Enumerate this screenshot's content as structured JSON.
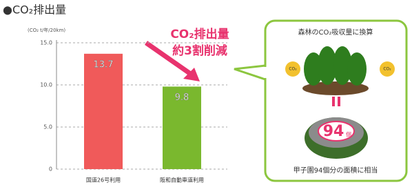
{
  "chart_data": {
    "type": "bar",
    "title": "●CO₂排出量",
    "unit_label": "(CO₂ t/年/20km)",
    "categories": [
      "国道26号利用",
      "阪和自動車道利用"
    ],
    "values": [
      13.7,
      9.8
    ],
    "colors": [
      "#f05a5a",
      "#7ab82e"
    ],
    "ylim": [
      0,
      15
    ],
    "yticks": [
      {
        "value": 15,
        "label": "15.0"
      },
      {
        "value": 10,
        "label": "10.0"
      },
      {
        "value": 5,
        "label": "5.0"
      },
      0
    ],
    "grid": true,
    "annotation": [
      "CO₂排出量",
      "約3割削減"
    ]
  },
  "panel": {
    "title": "森林のCO₂吸収量に換算",
    "badges": [
      "CO₂",
      "CO₂"
    ],
    "number": "94",
    "unit": "個",
    "caption": "甲子園94個分の面積に相当"
  }
}
